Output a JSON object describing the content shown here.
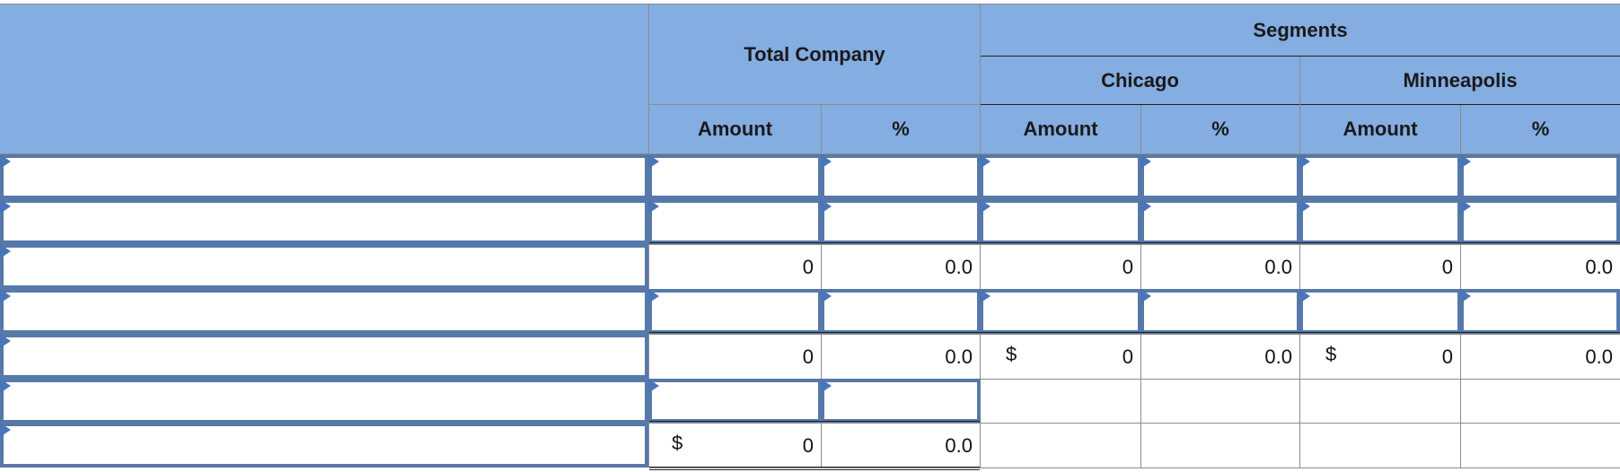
{
  "header": {
    "segments_label": "Segments",
    "total_company_label": "Total Company",
    "chicago_label": "Chicago",
    "minneapolis_label": "Minneapolis",
    "amount_label": "Amount",
    "percent_label": "%"
  },
  "rows": {
    "row3": {
      "total_amount": "0",
      "total_pct": "0.0",
      "chicago_amount": "0",
      "chicago_pct": "0.0",
      "minneapolis_amount": "0",
      "minneapolis_pct": "0.0"
    },
    "row5": {
      "total_amount": "0",
      "total_pct": "0.0",
      "chicago_dollar": "$",
      "chicago_amount": "0",
      "chicago_pct": "0.0",
      "minneapolis_dollar": "$",
      "minneapolis_amount": "0",
      "minneapolis_pct": "0.0"
    },
    "row7": {
      "total_dollar": "$",
      "total_amount": "0",
      "total_pct": "0.0"
    }
  },
  "colors": {
    "header_bg": "#84ADE1",
    "input_border": "#5679A9",
    "input_marker": "#4A75B7"
  }
}
